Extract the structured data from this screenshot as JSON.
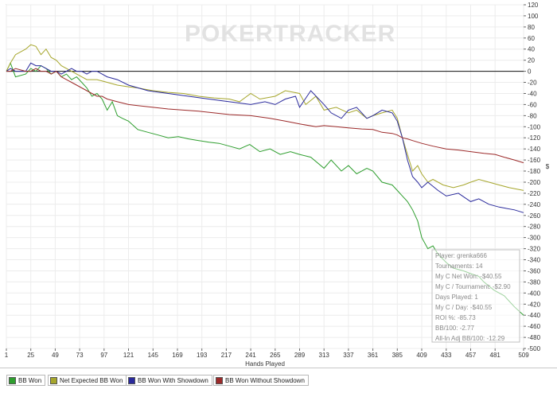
{
  "chart_data": {
    "type": "line",
    "xlabel": "Hands Played",
    "ylabel": "$",
    "xlim": [
      1,
      509
    ],
    "ylim": [
      -500,
      120
    ],
    "xticks": [
      1,
      25,
      49,
      73,
      97,
      121,
      145,
      169,
      193,
      217,
      241,
      265,
      289,
      313,
      337,
      361,
      385,
      409,
      433,
      457,
      481,
      509
    ],
    "yticks": [
      120,
      100,
      80,
      60,
      40,
      20,
      0,
      -20,
      -40,
      -60,
      -80,
      -100,
      -120,
      -140,
      -160,
      -180,
      -200,
      -220,
      -240,
      -260,
      -280,
      -300,
      -320,
      -340,
      -360,
      -380,
      -400,
      -420,
      -440,
      -460,
      -480,
      -500
    ],
    "zero_line": 0,
    "watermark": "POKERTRACKER",
    "series": [
      {
        "name": "BB Won",
        "color": "#2e9e2e",
        "x": [
          1,
          5,
          10,
          20,
          25,
          30,
          35,
          40,
          45,
          50,
          55,
          60,
          65,
          70,
          75,
          80,
          85,
          90,
          95,
          100,
          105,
          110,
          115,
          121,
          130,
          140,
          150,
          160,
          170,
          180,
          190,
          200,
          210,
          220,
          230,
          240,
          250,
          260,
          270,
          280,
          289,
          300,
          313,
          320,
          330,
          337,
          345,
          355,
          361,
          370,
          380,
          385,
          390,
          395,
          400,
          405,
          409,
          415,
          420,
          425,
          433,
          440,
          450,
          457,
          465,
          470,
          480,
          490,
          500,
          509
        ],
        "y": [
          0,
          15,
          -10,
          -5,
          5,
          0,
          10,
          5,
          -5,
          0,
          -10,
          -5,
          -15,
          -10,
          -20,
          -30,
          -45,
          -40,
          -50,
          -70,
          -55,
          -80,
          -85,
          -90,
          -105,
          -110,
          -115,
          -120,
          -118,
          -122,
          -125,
          -128,
          -130,
          -135,
          -140,
          -132,
          -145,
          -140,
          -150,
          -145,
          -150,
          -155,
          -175,
          -160,
          -180,
          -170,
          -185,
          -175,
          -180,
          -200,
          -205,
          -215,
          -225,
          -235,
          -250,
          -270,
          -300,
          -320,
          -315,
          -330,
          -345,
          -355,
          -360,
          -365,
          -370,
          -380,
          -395,
          -405,
          -425,
          -440
        ]
      },
      {
        "name": "Net Expected BB Won",
        "color": "#a6a62c",
        "x": [
          1,
          5,
          10,
          20,
          25,
          30,
          35,
          40,
          45,
          50,
          55,
          60,
          65,
          70,
          75,
          80,
          90,
          100,
          110,
          121,
          130,
          145,
          160,
          175,
          190,
          205,
          220,
          230,
          241,
          250,
          265,
          275,
          289,
          295,
          305,
          313,
          325,
          337,
          345,
          355,
          361,
          370,
          380,
          385,
          390,
          395,
          400,
          405,
          409,
          415,
          420,
          430,
          440,
          450,
          457,
          465,
          475,
          485,
          495,
          509
        ],
        "y": [
          0,
          15,
          30,
          40,
          48,
          45,
          30,
          40,
          25,
          20,
          10,
          5,
          0,
          -5,
          -10,
          -15,
          -15,
          -20,
          -25,
          -28,
          -30,
          -35,
          -38,
          -40,
          -45,
          -48,
          -50,
          -55,
          -40,
          -50,
          -45,
          -35,
          -40,
          -60,
          -45,
          -70,
          -65,
          -75,
          -70,
          -85,
          -80,
          -75,
          -70,
          -85,
          -120,
          -150,
          -180,
          -170,
          -185,
          -200,
          -195,
          -205,
          -210,
          -205,
          -200,
          -195,
          -200,
          -205,
          -210,
          -215
        ]
      },
      {
        "name": "BB Won With Showdown",
        "color": "#2a2a9c",
        "x": [
          1,
          5,
          10,
          20,
          25,
          30,
          35,
          40,
          45,
          50,
          55,
          60,
          65,
          70,
          75,
          80,
          85,
          90,
          95,
          100,
          110,
          121,
          140,
          160,
          180,
          200,
          220,
          241,
          255,
          265,
          275,
          285,
          289,
          300,
          313,
          320,
          330,
          337,
          345,
          355,
          361,
          370,
          380,
          385,
          390,
          395,
          400,
          405,
          409,
          415,
          425,
          433,
          445,
          457,
          465,
          475,
          485,
          500,
          509
        ],
        "y": [
          0,
          5,
          0,
          0,
          15,
          10,
          10,
          5,
          0,
          0,
          -5,
          0,
          5,
          0,
          0,
          -5,
          0,
          0,
          -5,
          -10,
          -15,
          -25,
          -35,
          -40,
          -45,
          -50,
          -55,
          -60,
          -55,
          -60,
          -50,
          -45,
          -65,
          -35,
          -60,
          -75,
          -85,
          -70,
          -65,
          -85,
          -80,
          -70,
          -75,
          -90,
          -120,
          -160,
          -190,
          -200,
          -210,
          -200,
          -215,
          -225,
          -220,
          -235,
          -230,
          -240,
          -245,
          -250,
          -255
        ]
      },
      {
        "name": "BB Won Without Showdown",
        "color": "#9c2a2a",
        "x": [
          1,
          5,
          10,
          20,
          25,
          30,
          35,
          40,
          45,
          50,
          55,
          60,
          65,
          70,
          75,
          80,
          85,
          90,
          95,
          100,
          110,
          121,
          130,
          145,
          160,
          175,
          190,
          205,
          220,
          241,
          260,
          275,
          289,
          305,
          313,
          325,
          337,
          350,
          361,
          370,
          380,
          385,
          390,
          395,
          400,
          409,
          420,
          433,
          445,
          457,
          470,
          481,
          490,
          500,
          509
        ],
        "y": [
          0,
          0,
          5,
          0,
          0,
          5,
          0,
          0,
          -5,
          0,
          -10,
          -15,
          -20,
          -25,
          -30,
          -35,
          -40,
          -45,
          -45,
          -50,
          -55,
          -60,
          -62,
          -65,
          -68,
          -70,
          -72,
          -75,
          -78,
          -80,
          -85,
          -90,
          -95,
          -100,
          -98,
          -100,
          -102,
          -104,
          -105,
          -110,
          -112,
          -115,
          -120,
          -122,
          -125,
          -130,
          -135,
          -140,
          -142,
          -145,
          -148,
          -150,
          -155,
          -160,
          -165
        ]
      }
    ],
    "legend": [
      "BB Won",
      "Net Expected BB Won",
      "BB Won With Showdown",
      "BB Won Without Showdown"
    ],
    "legend_position": "bottom",
    "stats_box": [
      "Player: grenka666",
      "Tournaments: 14",
      "My C Net Won: -$40.55",
      "My C / Tournament: -$2.90",
      "Days Played: 1",
      "My C / Day: -$40.55",
      "ROI %: -85.73",
      "BB/100: -2.77",
      "All-In Adj BB/100: -12.29"
    ]
  }
}
